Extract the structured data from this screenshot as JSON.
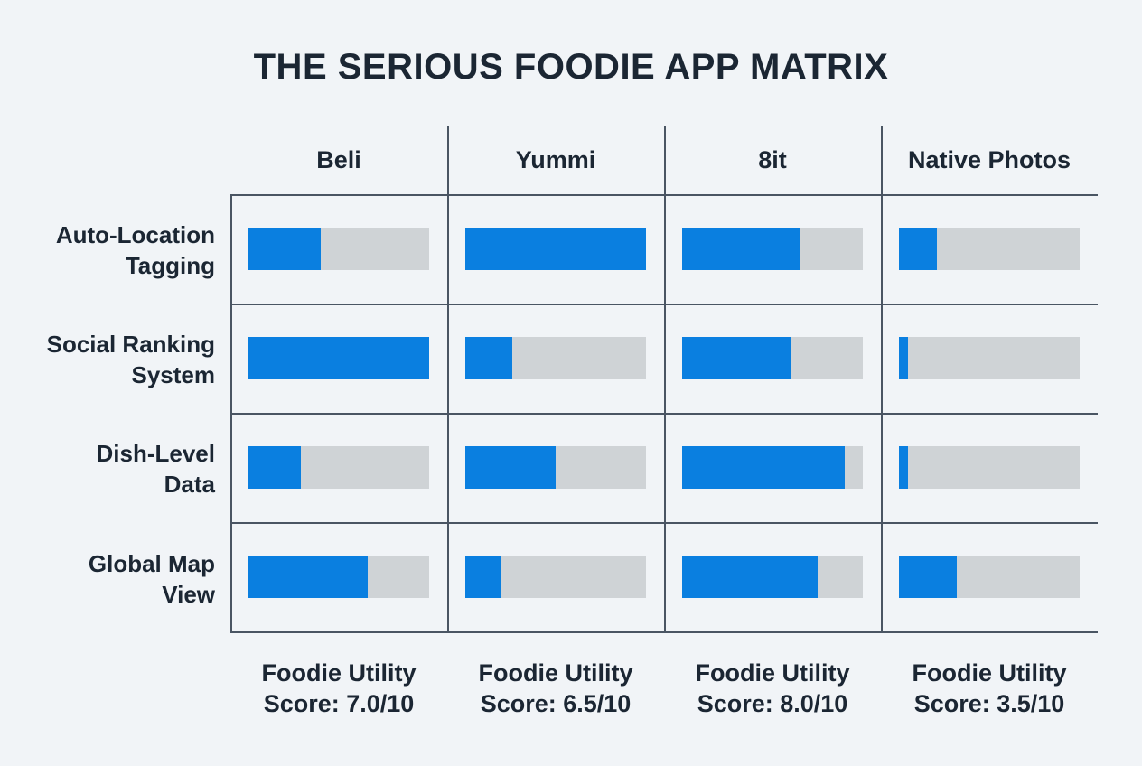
{
  "chart_data": {
    "type": "table",
    "title": "THE SERIOUS FOODIE APP MATRIX",
    "columns": [
      "Beli",
      "Yummi",
      "8it",
      "Native Photos"
    ],
    "rows": [
      {
        "label_line1": "Auto-Location",
        "label_line2": "Tagging",
        "values": [
          0.4,
          1.0,
          0.65,
          0.21
        ]
      },
      {
        "label_line1": "Social Ranking",
        "label_line2": "System",
        "values": [
          1.0,
          0.26,
          0.6,
          0.05
        ]
      },
      {
        "label_line1": "Dish-Level",
        "label_line2": "Data",
        "values": [
          0.29,
          0.5,
          0.9,
          0.05
        ]
      },
      {
        "label_line1": "Global Map",
        "label_line2": "View",
        "values": [
          0.66,
          0.2,
          0.75,
          0.32
        ]
      }
    ],
    "scores": [
      {
        "line1": "Foodie Utility",
        "line2": "Score: 7.0/10"
      },
      {
        "line1": "Foodie Utility",
        "line2": "Score: 6.5/10"
      },
      {
        "line1": "Foodie Utility",
        "line2": "Score: 8.0/10"
      },
      {
        "line1": "Foodie Utility",
        "line2": "Score: 3.5/10"
      }
    ],
    "value_scale": [
      0,
      1
    ],
    "colors": {
      "fill": "#0a7fe0",
      "track": "#cfd3d6",
      "grid": "#4a5563"
    }
  }
}
